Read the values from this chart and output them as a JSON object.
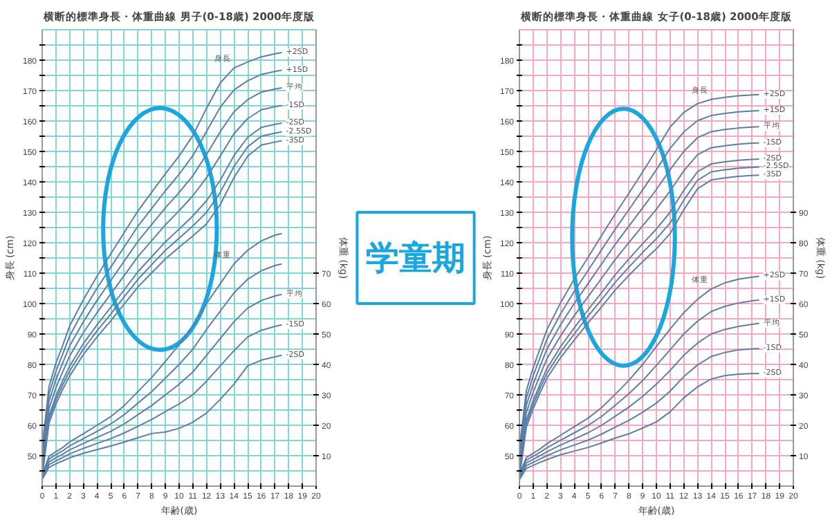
{
  "chart_data": [
    {
      "type": "line",
      "title": "横断的標準身長・体重曲線 男子(0-18歳) 2000年度版",
      "xlabel": "年齢(歳)",
      "ylabel": "身長 (cm)",
      "y2label": "体重 (kg)",
      "grid": true,
      "legend": false,
      "color": "#5a7fa8",
      "xlim": [
        0,
        20
      ],
      "ylim": [
        40,
        190
      ],
      "y2lim": [
        0,
        150
      ],
      "xticks": [
        0,
        1,
        2,
        3,
        4,
        5,
        6,
        7,
        8,
        9,
        10,
        11,
        12,
        13,
        14,
        15,
        16,
        17,
        18,
        19,
        20
      ],
      "yticks": [
        {
          "value": 45,
          "label": null
        },
        50,
        {
          "value": 55,
          "label": null
        },
        60,
        {
          "value": 65,
          "label": null
        },
        70,
        {
          "value": 75,
          "label": null
        },
        80,
        {
          "value": 85,
          "label": null
        },
        90,
        {
          "value": 95,
          "label": null
        },
        100,
        {
          "value": 105,
          "label": null
        },
        110,
        {
          "value": 115,
          "label": null
        },
        120,
        {
          "value": 125,
          "label": null
        },
        130,
        {
          "value": 135,
          "label": null
        },
        140,
        {
          "value": 145,
          "label": null
        },
        150,
        {
          "value": 155,
          "label": null
        },
        160,
        {
          "value": 165,
          "label": null
        },
        170,
        {
          "value": 175,
          "label": null
        },
        180,
        {
          "value": 185,
          "label": null
        }
      ],
      "y2ticks": [
        10,
        20,
        30,
        40,
        50,
        60,
        70
      ],
      "x": [
        0,
        0.5,
        1,
        1.5,
        2,
        3,
        4,
        5,
        6,
        7,
        8,
        9,
        10,
        11,
        12,
        13,
        14,
        15,
        16,
        17,
        17.5
      ],
      "annotations": [
        "身長",
        "体重"
      ],
      "series": [
        {
          "name": "+2SD",
          "color": "#5a7fa8",
          "values": [
            53.0,
            72.7,
            80.4,
            86.3,
            92.6,
            101.2,
            109.0,
            116.3,
            123.4,
            130.5,
            136.6,
            142.7,
            148.5,
            155.2,
            164.2,
            172.5,
            177.4,
            179.4,
            181.1,
            182.1,
            182.5
          ]
        },
        {
          "name": "+1SD",
          "color": "#5a7fa8",
          "values": [
            51.0,
            70.3,
            77.7,
            83.4,
            89.3,
            97.6,
            105.0,
            111.9,
            118.7,
            125.5,
            131.3,
            137.1,
            142.5,
            148.6,
            156.6,
            164.5,
            170.2,
            173.2,
            175.3,
            176.3,
            176.7
          ]
        },
        {
          "name": "平均",
          "color": "#5a7fa8",
          "values": [
            49.0,
            67.9,
            75.0,
            80.5,
            86.0,
            94.0,
            101.0,
            107.5,
            114.0,
            120.5,
            126.0,
            131.5,
            136.5,
            142.0,
            149.0,
            156.5,
            163.0,
            167.0,
            169.5,
            170.5,
            170.9
          ]
        },
        {
          "name": "-1SD",
          "color": "#5a7fa8",
          "values": [
            47.0,
            65.5,
            72.3,
            77.6,
            82.7,
            90.4,
            97.0,
            103.1,
            109.3,
            115.5,
            120.7,
            125.9,
            130.5,
            135.4,
            141.4,
            148.5,
            155.8,
            160.8,
            163.7,
            164.7,
            165.1
          ]
        },
        {
          "name": "-2SD",
          "color": "#5a7fa8",
          "values": [
            45.0,
            63.1,
            69.6,
            74.7,
            79.4,
            86.8,
            93.0,
            98.7,
            104.6,
            110.5,
            115.4,
            120.3,
            124.5,
            128.8,
            133.8,
            140.5,
            148.6,
            154.6,
            157.9,
            158.9,
            159.3
          ]
        },
        {
          "name": "-2.5SD",
          "color": "#5a7fa8",
          "values": [
            44.0,
            61.9,
            68.3,
            73.3,
            77.8,
            85.0,
            91.0,
            96.5,
            102.3,
            108.0,
            112.8,
            117.5,
            121.5,
            125.5,
            130.0,
            136.5,
            145.0,
            151.5,
            155.0,
            156.0,
            156.4
          ]
        },
        {
          "name": "-3SD",
          "color": "#5a7fa8",
          "values": [
            43.0,
            60.7,
            66.9,
            71.8,
            76.1,
            83.2,
            89.0,
            94.3,
            99.9,
            105.5,
            110.1,
            114.7,
            118.5,
            122.2,
            126.2,
            132.5,
            141.4,
            148.4,
            152.1,
            153.1,
            153.5
          ]
        },
        {
          "axis": "y2",
          "color": "#5a7fa8",
          "values": [
            3.8,
            9.8,
            11.3,
            12.7,
            14.5,
            17.2,
            20.0,
            22.8,
            26.5,
            31.1,
            35.7,
            41.0,
            46.5,
            52.5,
            60.0,
            66.5,
            73.0,
            77.5,
            80.6,
            82.5,
            83.0
          ]
        },
        {
          "axis": "y2",
          "color": "#5a7fa8",
          "values": [
            3.4,
            8.9,
            10.3,
            11.6,
            13.2,
            15.6,
            18.0,
            20.4,
            23.5,
            27.3,
            31.1,
            35.5,
            40.0,
            45.0,
            51.5,
            57.5,
            63.5,
            68.0,
            70.8,
            72.5,
            73.0
          ]
        },
        {
          "name": "平均",
          "axis": "y2",
          "color": "#5a7fa8",
          "values": [
            3.0,
            8.0,
            9.3,
            10.5,
            11.9,
            14.0,
            16.0,
            18.0,
            20.5,
            23.5,
            26.5,
            30.0,
            33.5,
            37.5,
            43.0,
            48.5,
            54.0,
            58.5,
            61.0,
            62.5,
            63.0
          ]
        },
        {
          "name": "-1SD",
          "axis": "y2",
          "color": "#5a7fa8",
          "values": [
            2.6,
            7.1,
            8.3,
            9.4,
            10.6,
            12.4,
            14.0,
            15.6,
            17.5,
            19.7,
            21.9,
            24.5,
            27.0,
            30.0,
            34.5,
            39.5,
            44.5,
            49.0,
            51.2,
            52.5,
            53.0
          ]
        },
        {
          "name": "-2SD",
          "axis": "y2",
          "color": "#5a7fa8",
          "values": [
            2.2,
            6.2,
            7.3,
            8.3,
            9.3,
            10.8,
            12.0,
            13.2,
            14.5,
            15.9,
            17.3,
            17.8,
            19.0,
            21.0,
            24.0,
            28.5,
            33.5,
            39.5,
            41.4,
            42.5,
            43.0
          ]
        }
      ]
    },
    {
      "type": "other",
      "annotations": [
        "学童期"
      ],
      "color": "#1aa7e0"
    },
    {
      "type": "line",
      "title": "横断的標準身長・体重曲線 女子(0-18歳) 2000年度版",
      "xlabel": "年齢(歳)",
      "ylabel": "身長 (cm)",
      "y2label": "体重 (kg)",
      "grid": true,
      "legend": false,
      "color": "#5a7fa8",
      "xlim": [
        0,
        20
      ],
      "ylim": [
        40,
        190
      ],
      "y2lim": [
        0,
        150
      ],
      "xticks": [
        0,
        1,
        2,
        3,
        4,
        5,
        6,
        7,
        8,
        9,
        10,
        11,
        12,
        13,
        14,
        15,
        16,
        17,
        18,
        19,
        20
      ],
      "yticks": [
        {
          "value": 45,
          "label": null
        },
        50,
        {
          "value": 55,
          "label": null
        },
        60,
        {
          "value": 65,
          "label": null
        },
        70,
        {
          "value": 75,
          "label": null
        },
        80,
        {
          "value": 85,
          "label": null
        },
        90,
        {
          "value": 95,
          "label": null
        },
        100,
        {
          "value": 105,
          "label": null
        },
        110,
        {
          "value": 115,
          "label": null
        },
        120,
        {
          "value": 125,
          "label": null
        },
        130,
        {
          "value": 135,
          "label": null
        },
        140,
        {
          "value": 145,
          "label": null
        },
        150,
        {
          "value": 155,
          "label": null
        },
        160,
        {
          "value": 165,
          "label": null
        },
        170,
        {
          "value": 175,
          "label": null
        },
        180,
        {
          "value": 185,
          "label": null
        }
      ],
      "y2ticks": [
        10,
        20,
        30,
        40,
        50,
        60,
        70,
        80,
        90
      ],
      "x": [
        0,
        0.5,
        1,
        1.5,
        2,
        3,
        4,
        5,
        6,
        7,
        8,
        9,
        10,
        11,
        12,
        13,
        14,
        15,
        16,
        17,
        17.5
      ],
      "annotations": [
        "身長",
        "体重"
      ],
      "series": [
        {
          "name": "+2SD",
          "color": "#5a7fa8",
          "values": [
            52.5,
            71.3,
            78.9,
            85.1,
            91.4,
            100.2,
            108.0,
            115.1,
            122.4,
            129.5,
            136.3,
            143.3,
            150.5,
            158.0,
            162.8,
            165.7,
            167.1,
            167.8,
            168.3,
            168.6,
            168.7
          ]
        },
        {
          "name": "+1SD",
          "color": "#5a7fa8",
          "values": [
            50.5,
            68.9,
            76.2,
            82.2,
            88.2,
            96.6,
            104.0,
            110.8,
            117.7,
            124.5,
            130.9,
            137.4,
            144.0,
            151.0,
            156.4,
            160.1,
            161.8,
            162.5,
            163.0,
            163.3,
            163.4
          ]
        },
        {
          "name": "平均",
          "color": "#5a7fa8",
          "values": [
            48.5,
            66.5,
            73.5,
            79.3,
            85.0,
            93.0,
            100.0,
            106.5,
            113.0,
            119.5,
            125.5,
            131.5,
            137.5,
            144.0,
            150.0,
            154.5,
            156.5,
            157.2,
            157.7,
            158.0,
            158.1
          ]
        },
        {
          "name": "-1SD",
          "color": "#5a7fa8",
          "values": [
            46.5,
            64.1,
            70.8,
            76.4,
            81.8,
            89.4,
            96.0,
            102.2,
            108.3,
            114.5,
            120.1,
            125.6,
            131.0,
            137.0,
            143.6,
            148.9,
            151.2,
            151.9,
            152.4,
            152.7,
            152.8
          ]
        },
        {
          "name": "-2SD",
          "color": "#5a7fa8",
          "values": [
            44.5,
            61.7,
            68.1,
            73.5,
            78.6,
            85.8,
            92.0,
            97.9,
            103.6,
            109.5,
            114.7,
            119.7,
            124.5,
            130.0,
            137.2,
            143.3,
            145.9,
            146.6,
            147.1,
            147.4,
            147.5
          ]
        },
        {
          "name": "-2.5SD",
          "color": "#5a7fa8",
          "values": [
            43.5,
            60.5,
            66.8,
            72.1,
            77.0,
            84.0,
            90.0,
            95.8,
            101.3,
            107.0,
            112.0,
            116.8,
            121.3,
            126.5,
            134.0,
            140.5,
            143.3,
            144.0,
            144.5,
            144.8,
            144.9
          ]
        },
        {
          "name": "-3SD",
          "color": "#5a7fa8",
          "values": [
            42.5,
            59.3,
            65.4,
            70.6,
            75.4,
            82.2,
            88.0,
            93.6,
            98.9,
            104.5,
            109.3,
            113.8,
            118.0,
            123.0,
            130.8,
            137.7,
            140.6,
            141.3,
            141.8,
            142.1,
            142.2
          ]
        },
        {
          "name": "+2SD",
          "axis": "y2",
          "color": "#5a7fa8",
          "values": [
            3.7,
            9.4,
            10.8,
            12.2,
            13.9,
            16.7,
            19.5,
            22.3,
            25.8,
            30.2,
            34.8,
            40.0,
            45.9,
            51.6,
            57.0,
            61.4,
            64.8,
            66.8,
            68.0,
            68.7,
            69.0
          ]
        },
        {
          "name": "+1SD",
          "axis": "y2",
          "color": "#5a7fa8",
          "values": [
            3.3,
            8.5,
            9.8,
            11.1,
            12.6,
            15.1,
            17.5,
            19.9,
            22.9,
            26.6,
            30.4,
            34.7,
            39.7,
            44.8,
            50.0,
            54.2,
            57.4,
            59.1,
            60.2,
            60.9,
            61.2
          ]
        },
        {
          "name": "平均",
          "axis": "y2",
          "color": "#5a7fa8",
          "values": [
            2.9,
            7.6,
            8.8,
            10.0,
            11.3,
            13.5,
            15.5,
            17.5,
            20.0,
            23.0,
            26.0,
            29.5,
            33.5,
            38.0,
            43.0,
            47.0,
            50.0,
            51.5,
            52.5,
            53.2,
            53.5
          ]
        },
        {
          "name": "-1SD",
          "axis": "y2",
          "color": "#5a7fa8",
          "values": [
            2.5,
            6.7,
            7.8,
            8.9,
            10.0,
            11.9,
            13.5,
            15.1,
            17.1,
            19.4,
            21.6,
            24.3,
            27.3,
            31.2,
            36.0,
            39.8,
            42.6,
            43.9,
            44.8,
            45.1,
            45.2
          ]
        },
        {
          "name": "-2SD",
          "axis": "y2",
          "color": "#5a7fa8",
          "values": [
            2.1,
            5.8,
            6.8,
            7.8,
            8.7,
            10.3,
            11.5,
            12.7,
            14.2,
            15.8,
            17.2,
            19.1,
            21.1,
            24.4,
            29.0,
            32.6,
            35.2,
            36.3,
            36.8,
            37.0,
            37.0
          ]
        }
      ]
    }
  ]
}
